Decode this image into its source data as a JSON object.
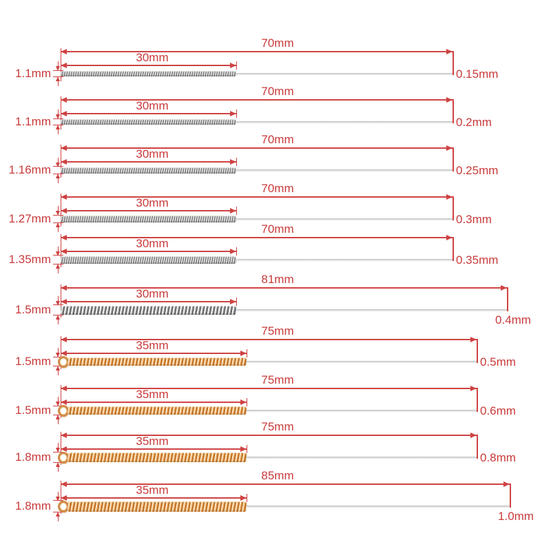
{
  "diagram": {
    "title": "nozzle-cleaning-needle-dimensions",
    "unit": "mm",
    "rows": [
      {
        "shank_diameter": "1.1mm",
        "brush_length": "30mm",
        "total_length": "70mm",
        "tip_diameter": "0.15mm",
        "brush_material": "steel"
      },
      {
        "shank_diameter": "1.1mm",
        "brush_length": "30mm",
        "total_length": "70mm",
        "tip_diameter": "0.2mm",
        "brush_material": "steel"
      },
      {
        "shank_diameter": "1.16mm",
        "brush_length": "30mm",
        "total_length": "70mm",
        "tip_diameter": "0.25mm",
        "brush_material": "steel"
      },
      {
        "shank_diameter": "1.27mm",
        "brush_length": "30mm",
        "total_length": "70mm",
        "tip_diameter": "0.3mm",
        "brush_material": "steel"
      },
      {
        "shank_diameter": "1.35mm",
        "brush_length": "30mm",
        "total_length": "70mm",
        "tip_diameter": "0.35mm",
        "brush_material": "steel"
      },
      {
        "shank_diameter": "1.5mm",
        "brush_length": "30mm",
        "total_length": "81mm",
        "tip_diameter": "0.4mm",
        "brush_material": "steel"
      },
      {
        "shank_diameter": "1.5mm",
        "brush_length": "35mm",
        "total_length": "75mm",
        "tip_diameter": "0.5mm",
        "brush_material": "copper"
      },
      {
        "shank_diameter": "1.5mm",
        "brush_length": "35mm",
        "total_length": "75mm",
        "tip_diameter": "0.6mm",
        "brush_material": "copper"
      },
      {
        "shank_diameter": "1.8mm",
        "brush_length": "35mm",
        "total_length": "75mm",
        "tip_diameter": "0.8mm",
        "brush_material": "copper"
      },
      {
        "shank_diameter": "1.8mm",
        "brush_length": "35mm",
        "total_length": "85mm",
        "tip_diameter": "1.0mm",
        "brush_material": "copper"
      }
    ],
    "colors": {
      "dimension_red": "#cf4343",
      "steel_gray": "#a8a8a8",
      "copper_orange": "#d08a45",
      "wire_gray": "#cccccc",
      "background": "#ffffff"
    }
  }
}
